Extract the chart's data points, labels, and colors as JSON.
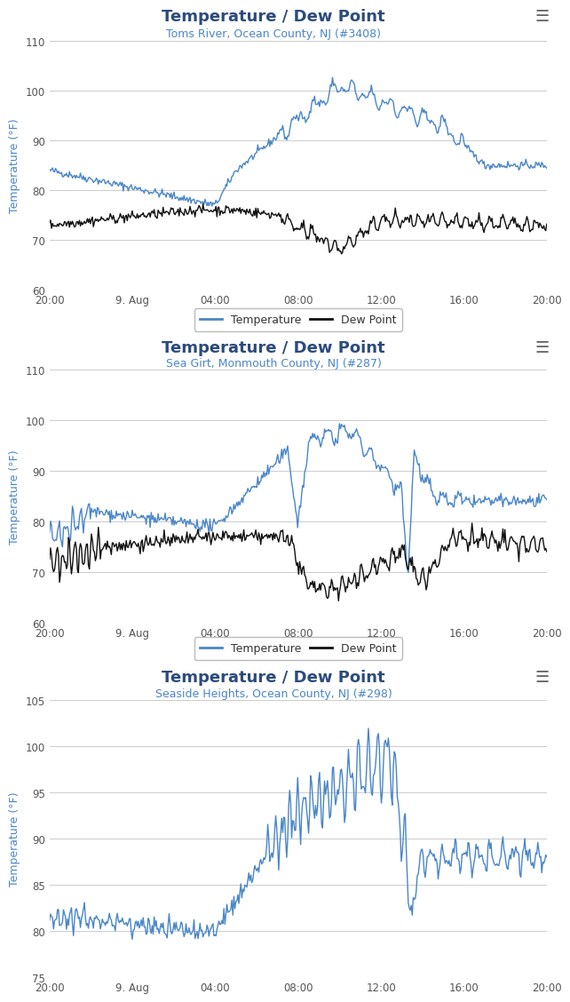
{
  "main_title_color": "#2c4b7c",
  "subtitle_color": "#4a86c8",
  "ylabel": "Temperature (°F)",
  "ylabel_color": "#4a86c8",
  "background_color": "#ffffff",
  "grid_color": "#cccccc",
  "temp_color": "#4a86c8",
  "dew_color": "#111111",
  "panels": [
    {
      "title": "Temperature / Dew Point",
      "subtitle": "Toms River, Ocean County, NJ (#3408)",
      "ylim": [
        60,
        110
      ],
      "yticks": [
        60,
        70,
        80,
        90,
        100,
        110
      ],
      "has_dew": true
    },
    {
      "title": "Temperature / Dew Point",
      "subtitle": "Sea Girt, Monmouth County, NJ (#287)",
      "ylim": [
        60,
        110
      ],
      "yticks": [
        60,
        70,
        80,
        90,
        100,
        110
      ],
      "has_dew": true
    },
    {
      "title": "Temperature / Dew Point",
      "subtitle": "Seaside Heights, Ocean County, NJ (#298)",
      "ylim": [
        75,
        105
      ],
      "yticks": [
        75,
        80,
        85,
        90,
        95,
        100,
        105
      ],
      "has_dew": false
    }
  ],
  "xtick_labels": [
    "20:00",
    "9. Aug",
    "04:00",
    "08:00",
    "12:00",
    "16:00",
    "20:00"
  ],
  "xtick_positions": [
    0,
    4,
    8,
    12,
    16,
    20,
    24
  ],
  "legend_labels": [
    "Temperature",
    "Dew Point"
  ]
}
